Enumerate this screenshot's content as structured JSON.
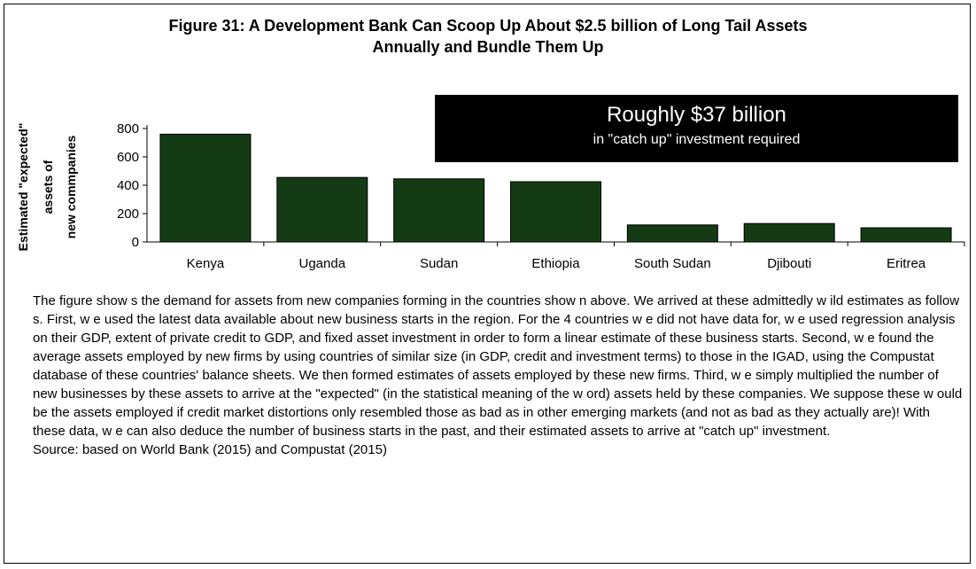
{
  "figure": {
    "title": "Figure 31: A Development Bank Can Scoop Up About $2.5 billion of Long Tail Assets\nAnnually and Bundle Them Up"
  },
  "callout": {
    "main": "Roughly $37 billion",
    "sub": "in \"catch up\" investment required"
  },
  "chart_data": {
    "type": "bar",
    "title": "",
    "xlabel": "",
    "ylabel": "Estimated \"expected\" assets of new companies",
    "categories": [
      "Kenya",
      "Uganda",
      "Sudan",
      "Ethiopia",
      "South Sudan",
      "Djibouti",
      "Eritrea"
    ],
    "values": [
      760,
      455,
      445,
      425,
      120,
      130,
      100
    ],
    "ylim": [
      0,
      800
    ],
    "yticks": [
      0,
      200,
      400,
      600,
      800
    ],
    "grid": false,
    "bar_color": "#153b15",
    "axis_title_lines": [
      "Estimated \"expected\"",
      "assets of",
      "new commpanies"
    ]
  },
  "caption": {
    "text": "The figure show s the demand for assets from new  companies forming in the countries show n above. We arrived at these admittedly w ild estimates as follow s. First, w e used the latest data available about new business starts in the region. For the 4 countries w e did not have data for, w e used regression analysis on their GDP, extent of private credit to GDP, and fixed asset investment in order to form a linear estimate of these business starts. Second, w e found the average assets employed by new  firms by using countries of similar size (in GDP, credit and investment terms) to those in the IGAD, using the Compustat database of these countries' balance sheets. We then formed estimates of assets employed by these new  firms. Third, w e simply multiplied the number of new  businesses by these assets to arrive at the \"expected\" (in the statistical meaning of the w ord) assets held by these companies. We suppose these w ould be the assets employed if credit market distortions only resembled those as bad as in other emerging markets (and not as bad as they actually are)! With these data, w e can also deduce the number of business starts in the past, and their estimated assets to arrive at \"catch up\" investment.",
    "source": "Source: based on World Bank (2015) and Compustat (2015)"
  }
}
